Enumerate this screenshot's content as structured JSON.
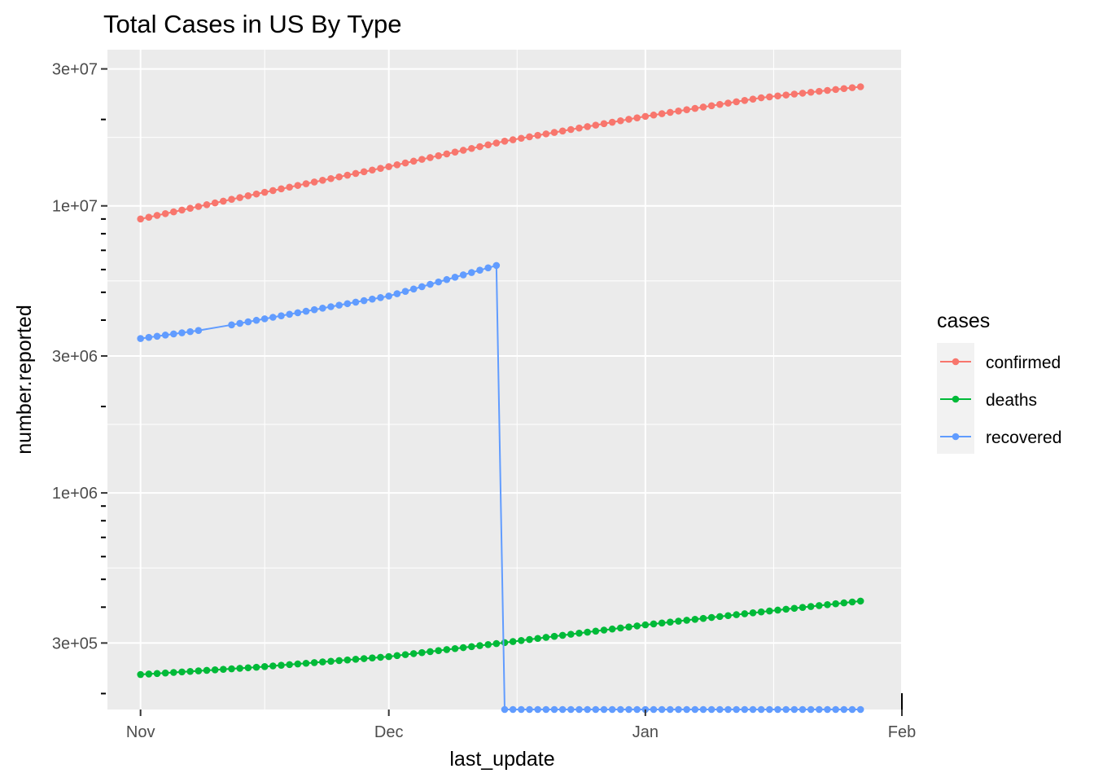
{
  "chart_data": {
    "type": "line",
    "title": "Total Cases in US By Type",
    "xlabel": "last_update",
    "ylabel": "number.reported",
    "x_ticks": [
      {
        "label": "Nov",
        "date": "2020-11-01"
      },
      {
        "label": "Dec",
        "date": "2020-12-01"
      },
      {
        "label": "Jan",
        "date": "2021-01-01"
      },
      {
        "label": "Feb",
        "date": "2021-02-01"
      }
    ],
    "y_scale": "log10",
    "y_ticks": [
      {
        "label": "3e+05",
        "value": 300000
      },
      {
        "label": "1e+06",
        "value": 1000000
      },
      {
        "label": "3e+06",
        "value": 3000000
      },
      {
        "label": "1e+07",
        "value": 10000000
      },
      {
        "label": "3e+07",
        "value": 30000000
      }
    ],
    "xlim": [
      "2020-10-28",
      "2021-02-01"
    ],
    "ylim": [
      176000,
      35000000
    ],
    "grid": true,
    "legend_title": "cases",
    "legend_position": "right",
    "series": [
      {
        "name": "confirmed",
        "color": "#F8766D",
        "segments": [
          {
            "start": "2020-11-01",
            "end": "2021-01-27",
            "anchors": [
              [
                "2020-11-01",
                9000000
              ],
              [
                "2020-11-15",
                11000000
              ],
              [
                "2020-12-01",
                13700000
              ],
              [
                "2020-12-15",
                16800000
              ],
              [
                "2021-01-01",
                20500000
              ],
              [
                "2021-01-15",
                23800000
              ],
              [
                "2021-01-27",
                26000000
              ]
            ]
          }
        ]
      },
      {
        "name": "deaths",
        "color": "#00BA38",
        "segments": [
          {
            "start": "2020-11-01",
            "end": "2021-01-27",
            "anchors": [
              [
                "2020-11-01",
                233000
              ],
              [
                "2020-11-15",
                247000
              ],
              [
                "2020-12-01",
                269000
              ],
              [
                "2020-12-15",
                301000
              ],
              [
                "2021-01-01",
                347000
              ],
              [
                "2021-01-15",
                385000
              ],
              [
                "2021-01-27",
                420000
              ]
            ]
          }
        ]
      },
      {
        "name": "recovered",
        "color": "#619CFF",
        "segments": [
          {
            "start": "2020-11-01",
            "end": "2020-11-08",
            "anchors": [
              [
                "2020-11-01",
                3450000
              ],
              [
                "2020-11-08",
                3680000
              ]
            ]
          },
          {
            "start": "2020-11-12",
            "end": "2020-12-14",
            "anchors": [
              [
                "2020-11-12",
                3850000
              ],
              [
                "2020-12-01",
                4850000
              ],
              [
                "2020-12-14",
                6200000
              ]
            ]
          },
          {
            "start": "2020-12-15",
            "end": "2021-01-27",
            "anchors": [
              [
                "2020-12-15",
                176000
              ],
              [
                "2021-01-27",
                176000
              ]
            ]
          }
        ]
      }
    ]
  }
}
